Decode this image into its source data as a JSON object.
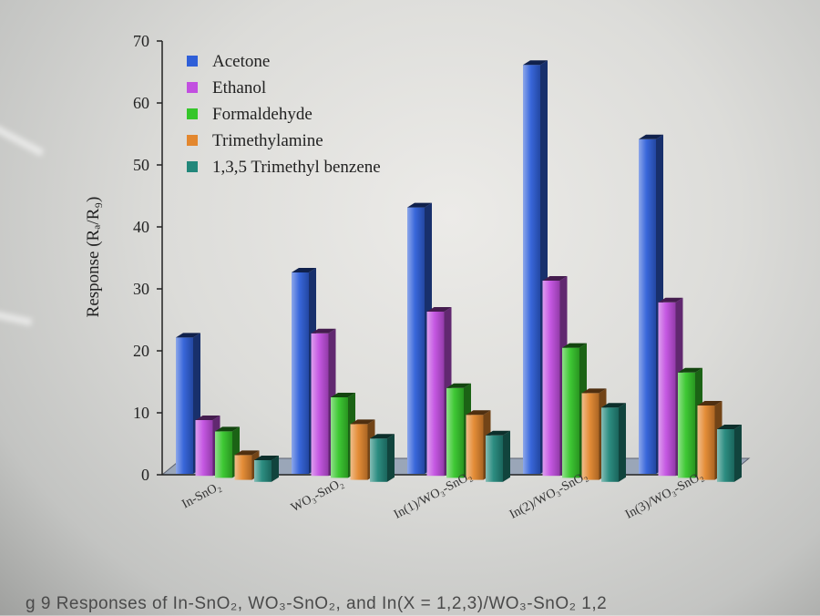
{
  "caption": "g  9  Responses  of  In-SnO₂,  WO₃-SnO₂,  and  In(X = 1,2,3)/WO₃-SnO₂ 1,2",
  "chart_data": {
    "type": "bar",
    "ylabel": "Response (Rₐ/R₉)",
    "ylim": [
      0,
      70
    ],
    "yticks": [
      "0",
      "10",
      "20",
      "30",
      "40",
      "50",
      "60",
      "70"
    ],
    "categories": [
      "In-SnO₂",
      "WO₃-SnO₂",
      "In(1)/WO₃-SnO₂",
      "In(2)/WO₃-SnO₂",
      "In(3)/WO₃-SnO₂"
    ],
    "legend_position": "top-left",
    "series": [
      {
        "name": "Acetone",
        "color": "#2f5fd8",
        "values": [
          22,
          32.5,
          43,
          66,
          54
        ]
      },
      {
        "name": "Ethanol",
        "color": "#c24fe0",
        "values": [
          9,
          23,
          26.5,
          31.5,
          28
        ]
      },
      {
        "name": "Formaldehyde",
        "color": "#35c62a",
        "values": [
          7.5,
          13,
          14.5,
          21,
          17
        ]
      },
      {
        "name": "Trimethylamine",
        "color": "#e3872e",
        "values": [
          4,
          9,
          10.5,
          14,
          12
        ]
      },
      {
        "name": "1,3,5 Trimethyl benzene",
        "color": "#22877a",
        "values": [
          3.5,
          7,
          7.5,
          12,
          8.5
        ]
      }
    ]
  }
}
